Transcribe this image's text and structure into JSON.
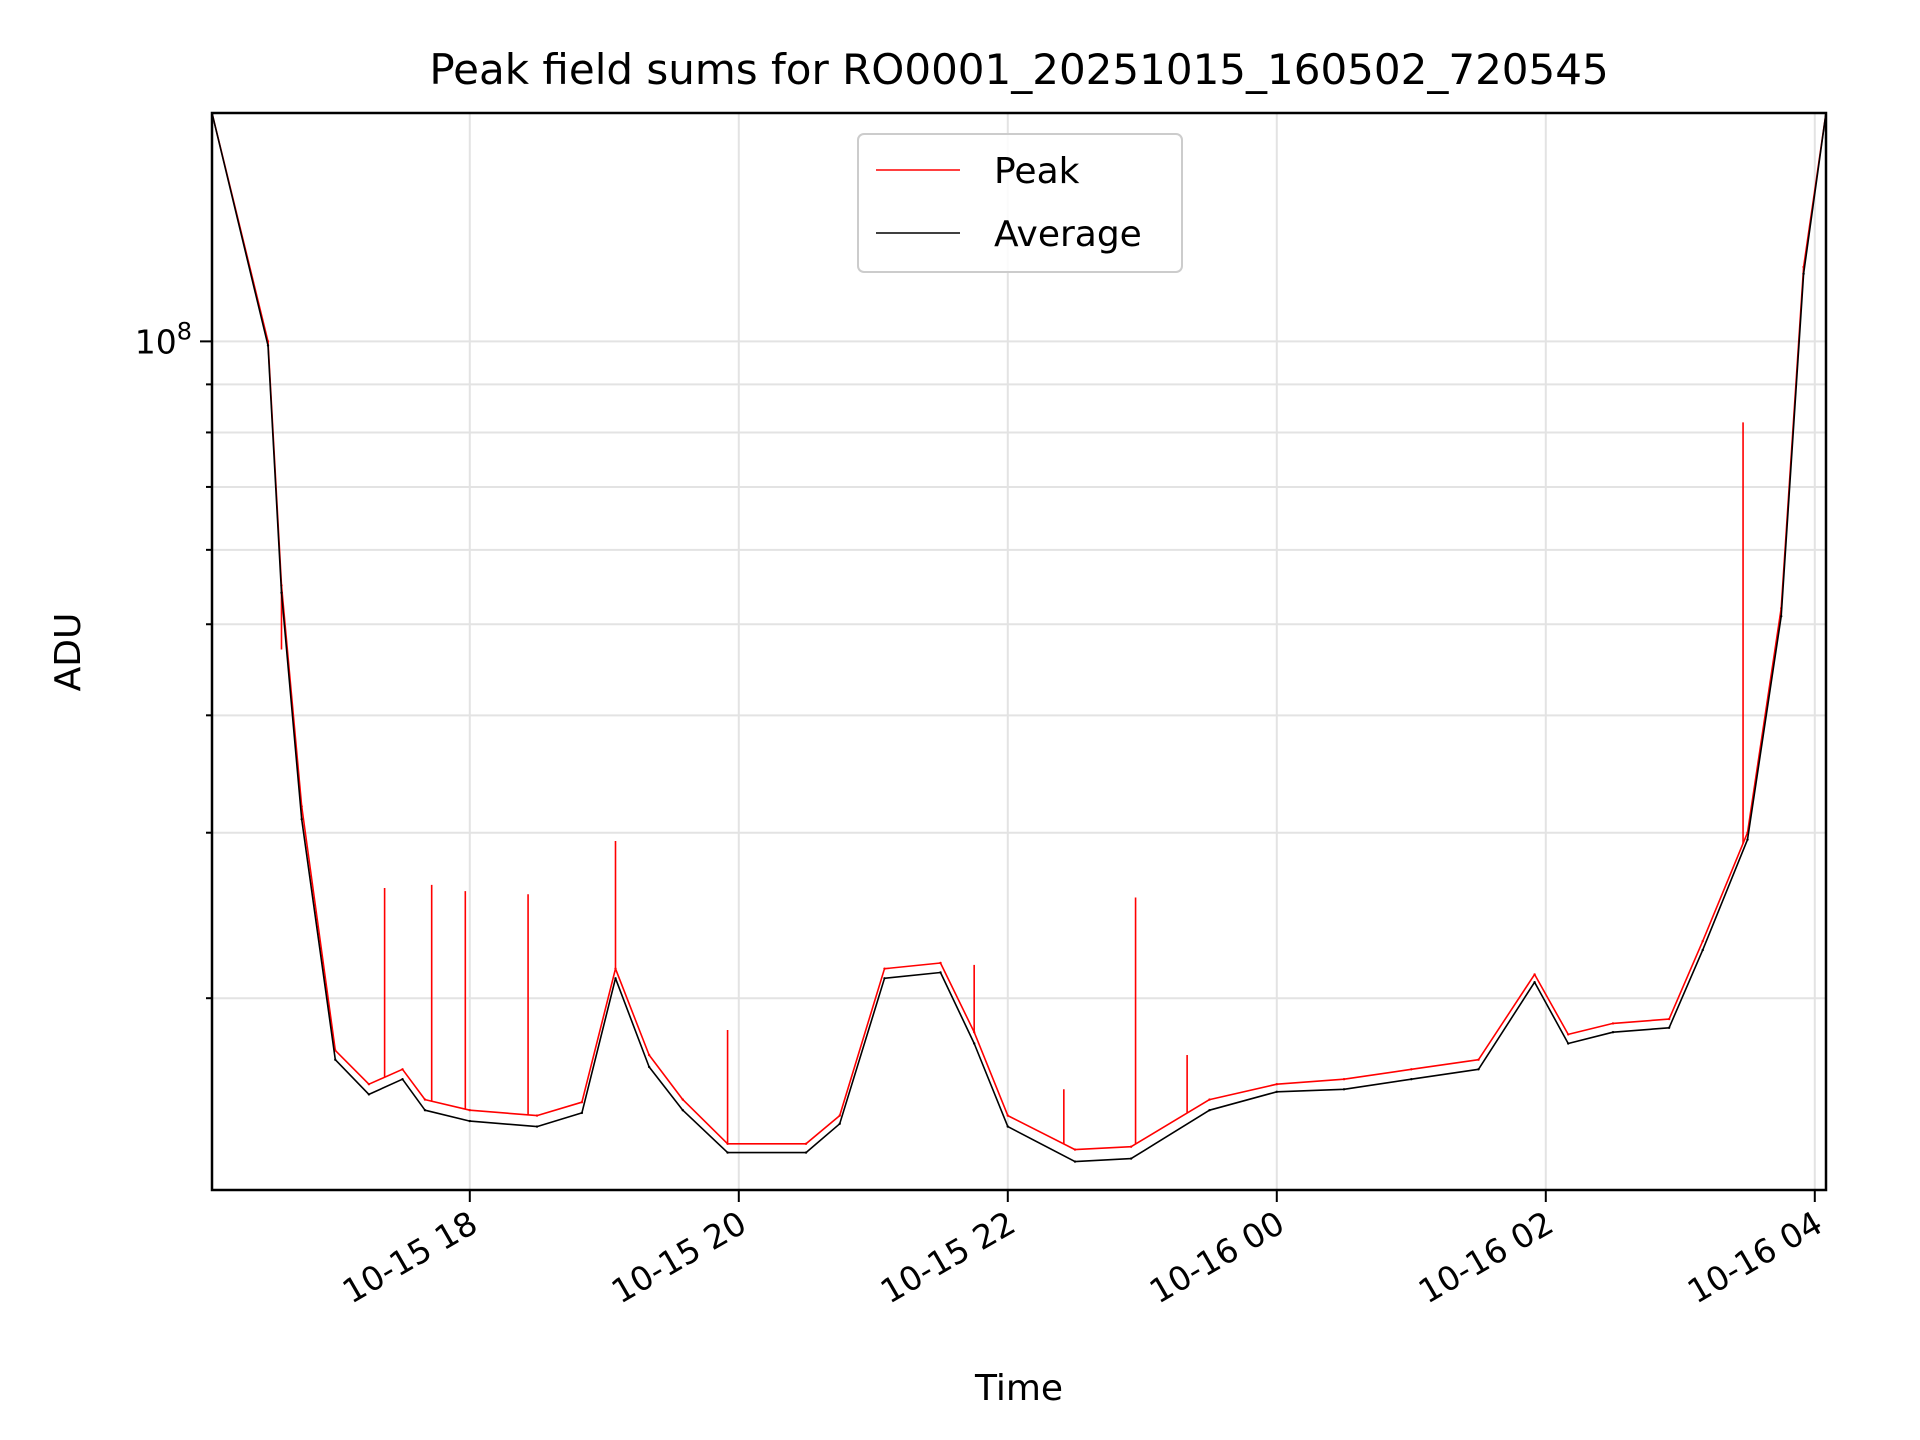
{
  "chart_data": {
    "type": "line",
    "title": "Peak field sums for RO0001_20251015_160502_720545",
    "xlabel": "Time",
    "ylabel": "ADU",
    "yscale": "log",
    "grid": true,
    "legend_position": "upper-center",
    "x_tick_labels": [
      "10-15 18",
      "10-15 20",
      "10-15 22",
      "10-16 00",
      "10-16 02",
      "10-16 04"
    ],
    "x_tick_values": [
      "2025-10-15 18:00",
      "2025-10-15 20:00",
      "2025-10-15 22:00",
      "2025-10-16 00:00",
      "2025-10-16 02:00",
      "2025-10-16 04:00"
    ],
    "y_tick_labels": [
      {
        "value": 100000000,
        "base": "10",
        "exp": "8"
      }
    ],
    "xlim": [
      "2025-10-15 16:05",
      "2025-10-16 04:05"
    ],
    "ylim": [
      12500000,
      175000000
    ],
    "x": [
      "2025-10-15 16:05",
      "2025-10-15 16:30",
      "2025-10-15 16:36",
      "2025-10-15 16:45",
      "2025-10-15 17:00",
      "2025-10-15 17:15",
      "2025-10-15 17:30",
      "2025-10-15 17:40",
      "2025-10-15 18:00",
      "2025-10-15 18:30",
      "2025-10-15 18:50",
      "2025-10-15 19:05",
      "2025-10-15 19:20",
      "2025-10-15 19:35",
      "2025-10-15 19:55",
      "2025-10-15 20:30",
      "2025-10-15 20:45",
      "2025-10-15 21:05",
      "2025-10-15 21:30",
      "2025-10-15 21:45",
      "2025-10-15 22:00",
      "2025-10-15 22:30",
      "2025-10-15 22:55",
      "2025-10-15 23:30",
      "2025-10-16 00:00",
      "2025-10-16 00:30",
      "2025-10-16 01:00",
      "2025-10-16 01:30",
      "2025-10-16 01:55",
      "2025-10-16 02:10",
      "2025-10-16 02:30",
      "2025-10-16 02:55",
      "2025-10-16 03:10",
      "2025-10-16 03:30",
      "2025-10-16 03:45",
      "2025-10-16 03:55",
      "2025-10-16 04:05"
    ],
    "series": [
      {
        "name": "Peak",
        "color": "#ff0000",
        "values": [
          175000000,
          100000000,
          55000000,
          32000000,
          17600000,
          16200000,
          16800000,
          15600000,
          15200000,
          15000000,
          15500000,
          21500000,
          17400000,
          15600000,
          14000000,
          14000000,
          15000000,
          21500000,
          21800000,
          18400000,
          15000000,
          13800000,
          13900000,
          15600000,
          16200000,
          16400000,
          16800000,
          17200000,
          21200000,
          18300000,
          18800000,
          19000000,
          23000000,
          30000000,
          52000000,
          120000000,
          175000000
        ],
        "spikes": [
          {
            "x": "2025-10-15 16:36",
            "y": 47000000
          },
          {
            "x": "2025-10-15 17:22",
            "y": 26200000
          },
          {
            "x": "2025-10-15 17:43",
            "y": 26400000
          },
          {
            "x": "2025-10-15 17:58",
            "y": 26000000
          },
          {
            "x": "2025-10-15 18:26",
            "y": 25800000
          },
          {
            "x": "2025-10-15 19:05",
            "y": 29400000
          },
          {
            "x": "2025-10-15 19:55",
            "y": 18500000
          },
          {
            "x": "2025-10-15 21:45",
            "y": 21700000
          },
          {
            "x": "2025-10-15 22:25",
            "y": 16000000
          },
          {
            "x": "2025-10-15 22:57",
            "y": 25600000
          },
          {
            "x": "2025-10-15 23:20",
            "y": 17400000
          },
          {
            "x": "2025-10-16 03:28",
            "y": 82000000
          }
        ]
      },
      {
        "name": "Average",
        "color": "#000000",
        "values": [
          175000000,
          99000000,
          54000000,
          31000000,
          17200000,
          15800000,
          16400000,
          15200000,
          14800000,
          14600000,
          15100000,
          21000000,
          16900000,
          15200000,
          13700000,
          13700000,
          14700000,
          21000000,
          21300000,
          17900000,
          14600000,
          13400000,
          13500000,
          15200000,
          15900000,
          16000000,
          16400000,
          16800000,
          20800000,
          17900000,
          18400000,
          18600000,
          22500000,
          29500000,
          51000000,
          118000000,
          175000000
        ]
      }
    ]
  }
}
